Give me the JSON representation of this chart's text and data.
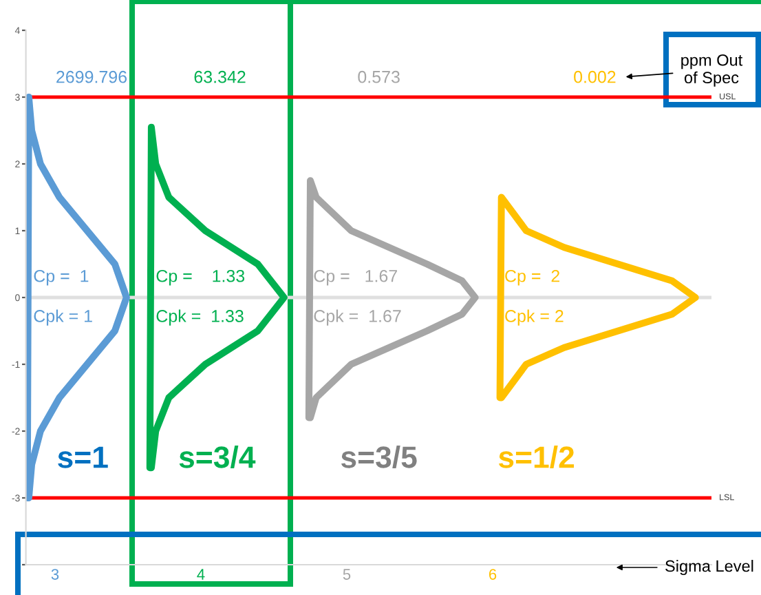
{
  "chart_data": {
    "type": "line",
    "series": [
      {
        "color": "#5b9bd5",
        "x": [
          2.81,
          2.82,
          2.84,
          2.9,
          3.03,
          3.22,
          3.41,
          3.49,
          3.41,
          3.22,
          3.03,
          2.9,
          2.84,
          2.82
        ],
        "values": [
          -3,
          3,
          2.5,
          2,
          1.5,
          1,
          0.5,
          0,
          -0.5,
          -1,
          -1.5,
          -2,
          -2.5,
          -3
        ]
      },
      {
        "color": "#00b050",
        "x": [
          3.65,
          3.66,
          3.69,
          3.78,
          4.03,
          4.39,
          4.57,
          4.39,
          4.03,
          3.78,
          3.69,
          3.66
        ],
        "values": [
          -2.55,
          2.55,
          2,
          1.5,
          1,
          0.5,
          0,
          -0.5,
          -1,
          -1.5,
          -2,
          -2.55
        ]
      },
      {
        "color": "#a6a6a6",
        "x": [
          4.74,
          4.75,
          4.79,
          5.03,
          5.55,
          5.79,
          5.88,
          5.79,
          5.55,
          5.03,
          4.79,
          4.75
        ],
        "values": [
          -1.8,
          1.75,
          1.5,
          1,
          0.5,
          0.25,
          0,
          -0.25,
          -0.5,
          -1,
          -1.5,
          -1.8
        ]
      },
      {
        "color": "#ffc000",
        "x": [
          6.05,
          6.06,
          6.23,
          6.49,
          6.86,
          7.23,
          7.39,
          7.23,
          6.86,
          6.49,
          6.23,
          6.06
        ],
        "values": [
          -1.5,
          1.5,
          1,
          0.75,
          0.5,
          0.25,
          0,
          -0.25,
          -0.5,
          -0.75,
          -1,
          -1.5
        ]
      }
    ],
    "xlim": [
      2.8,
      7.5
    ],
    "xticks": [
      3,
      4,
      5,
      6
    ],
    "ylim": [
      -4,
      4
    ],
    "yticks": [
      {
        "value": -4,
        "label": null
      },
      -3,
      -2,
      -1,
      0,
      1,
      2,
      3,
      4
    ],
    "ref_lines": [
      {
        "axis": "y",
        "value": 3,
        "label": "USL",
        "color": "#ff0000"
      },
      {
        "axis": "y",
        "value": -3,
        "label": "LSL",
        "color": "#ff0000"
      },
      {
        "axis": "y",
        "value": 0,
        "color": "#e0e0e0"
      }
    ],
    "annotations": [
      "2699.796",
      "63.342",
      "0.573",
      "0.002",
      "Cp =  1",
      "Cpk = 1",
      "Cp =    1.33",
      "Cpk =  1.33",
      "Cp =   1.67",
      "Cpk =  1.67",
      "Cp =  2",
      "Cpk = 2",
      "s=1",
      "s=3/4",
      "s=3/5",
      "s=1/2",
      "ppm Out\nof Spec",
      "Sigma Level"
    ],
    "grid": false,
    "legend": false,
    "marker": "none",
    "line_style": "solid"
  }
}
